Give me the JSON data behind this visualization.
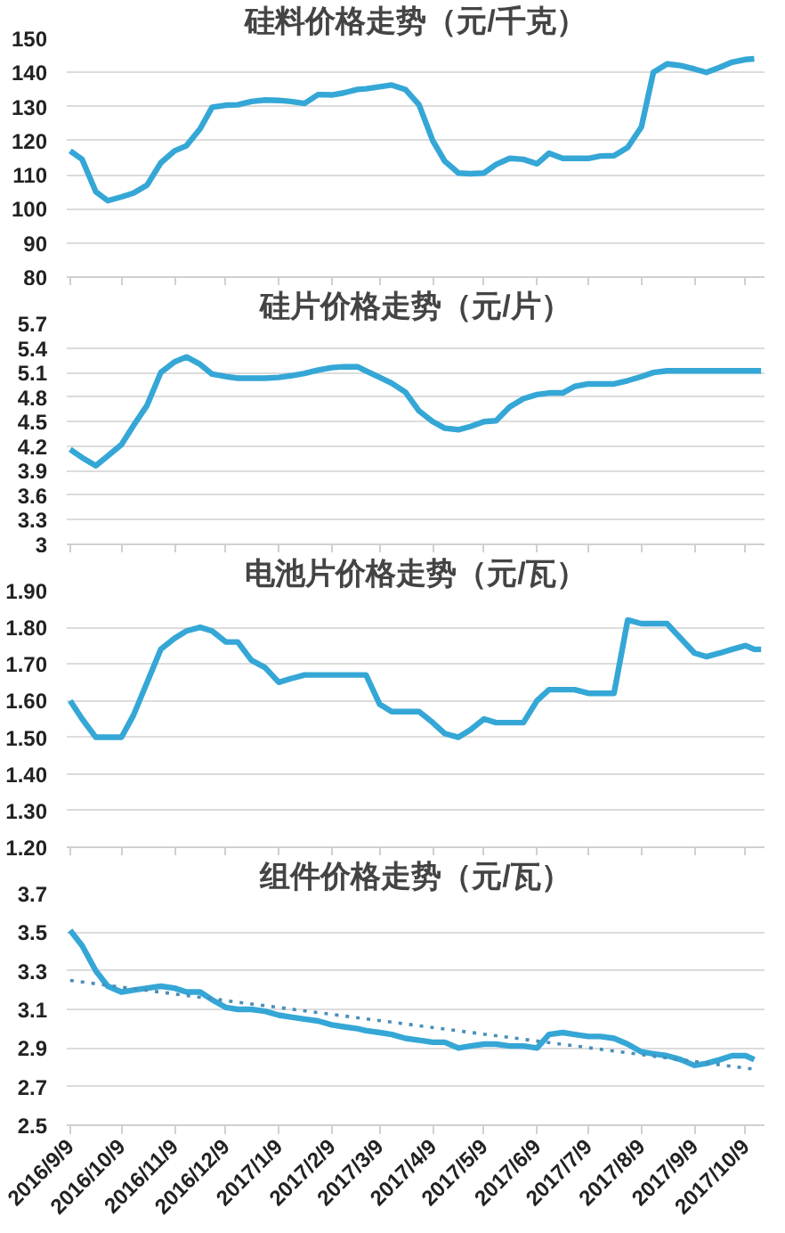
{
  "chart_data": [
    {
      "type": "line",
      "title": "硅料价格走势（元/千克）",
      "xlim": [
        "2016-09-07",
        "2017-10-20"
      ],
      "ylim": [
        80,
        150
      ],
      "yticks": [
        80,
        90,
        100,
        110,
        120,
        130,
        140,
        150
      ],
      "grid": "y",
      "tick_labels": "y",
      "line_style": "solid",
      "marker": "none",
      "xticks": [
        {
          "value": "2016-09-09",
          "label": null
        },
        {
          "value": "2016-10-09",
          "label": null
        },
        {
          "value": "2016-11-09",
          "label": null
        },
        {
          "value": "2016-12-09",
          "label": null
        },
        {
          "value": "2017-01-09",
          "label": null
        },
        {
          "value": "2017-02-09",
          "label": null
        },
        {
          "value": "2017-03-09",
          "label": null
        },
        {
          "value": "2017-04-09",
          "label": null
        },
        {
          "value": "2017-05-09",
          "label": null
        },
        {
          "value": "2017-06-09",
          "label": null
        },
        {
          "value": "2017-07-09",
          "label": null
        },
        {
          "value": "2017-08-09",
          "label": null
        },
        {
          "value": "2017-09-09",
          "label": null
        },
        {
          "value": "2017-10-09",
          "label": null
        }
      ],
      "series": [
        {
          "color": "#35a7d6",
          "x": [
            "2016-09-09",
            "2016-09-16",
            "2016-09-24",
            "2016-10-01",
            "2016-10-09",
            "2016-10-16",
            "2016-10-24",
            "2016-11-01",
            "2016-11-09",
            "2016-11-16",
            "2016-11-24",
            "2016-12-01",
            "2016-12-09",
            "2016-12-16",
            "2016-12-24",
            "2017-01-01",
            "2017-01-09",
            "2017-01-16",
            "2017-01-24",
            "2017-02-01",
            "2017-02-09",
            "2017-02-16",
            "2017-02-24",
            "2017-03-01",
            "2017-03-09",
            "2017-03-16",
            "2017-03-24",
            "2017-04-01",
            "2017-04-09",
            "2017-04-16",
            "2017-04-24",
            "2017-05-01",
            "2017-05-09",
            "2017-05-16",
            "2017-05-24",
            "2017-06-01",
            "2017-06-09",
            "2017-06-16",
            "2017-06-24",
            "2017-07-01",
            "2017-07-09",
            "2017-07-16",
            "2017-07-24",
            "2017-08-01",
            "2017-08-09",
            "2017-08-16",
            "2017-08-24",
            "2017-09-01",
            "2017-09-09",
            "2017-09-16",
            "2017-09-24",
            "2017-10-01",
            "2017-10-09",
            "2017-10-14"
          ],
          "values": [
            117,
            114.5,
            105,
            102.4,
            103.5,
            104.6,
            107,
            113.5,
            117,
            118.5,
            123.5,
            129.8,
            130.4,
            130.5,
            131.5,
            131.9,
            131.8,
            131.5,
            130.9,
            133.5,
            133.4,
            134,
            135,
            135.2,
            135.8,
            136.3,
            135,
            130.5,
            120,
            114,
            110.5,
            110.3,
            110.5,
            113,
            114.8,
            114.5,
            113.2,
            116.3,
            114.8,
            114.8,
            114.8,
            115.5,
            115.6,
            118,
            124,
            140,
            142.5,
            142,
            141,
            140,
            141.5,
            143,
            143.8,
            144
          ]
        }
      ]
    },
    {
      "type": "line",
      "title": "硅片价格走势（元/片）",
      "xlim": [
        "2016-09-07",
        "2017-10-20"
      ],
      "ylim": [
        3,
        5.7
      ],
      "yticks": [
        3,
        3.3,
        3.6,
        3.9,
        4.2,
        4.5,
        4.8,
        5.1,
        5.4,
        5.7
      ],
      "grid": "y",
      "tick_labels": "y",
      "line_style": "solid",
      "marker": "none",
      "xticks": [
        {
          "value": "2016-09-09",
          "label": null
        },
        {
          "value": "2016-10-09",
          "label": null
        },
        {
          "value": "2016-11-09",
          "label": null
        },
        {
          "value": "2016-12-09",
          "label": null
        },
        {
          "value": "2017-01-09",
          "label": null
        },
        {
          "value": "2017-02-09",
          "label": null
        },
        {
          "value": "2017-03-09",
          "label": null
        },
        {
          "value": "2017-04-09",
          "label": null
        },
        {
          "value": "2017-05-09",
          "label": null
        },
        {
          "value": "2017-06-09",
          "label": null
        },
        {
          "value": "2017-07-09",
          "label": null
        },
        {
          "value": "2017-08-09",
          "label": null
        },
        {
          "value": "2017-09-09",
          "label": null
        },
        {
          "value": "2017-10-09",
          "label": null
        }
      ],
      "series": [
        {
          "color": "#35a7d6",
          "x": [
            "2016-09-09",
            "2016-09-16",
            "2016-09-24",
            "2016-10-01",
            "2016-10-09",
            "2016-10-16",
            "2016-10-24",
            "2016-11-01",
            "2016-11-09",
            "2016-11-16",
            "2016-11-24",
            "2016-12-01",
            "2016-12-09",
            "2016-12-16",
            "2016-12-24",
            "2017-01-01",
            "2017-01-09",
            "2017-01-16",
            "2017-01-24",
            "2017-02-01",
            "2017-02-09",
            "2017-02-16",
            "2017-02-24",
            "2017-03-01",
            "2017-03-09",
            "2017-03-16",
            "2017-03-24",
            "2017-04-01",
            "2017-04-09",
            "2017-04-16",
            "2017-04-24",
            "2017-05-01",
            "2017-05-09",
            "2017-05-16",
            "2017-05-24",
            "2017-06-01",
            "2017-06-09",
            "2017-06-16",
            "2017-06-24",
            "2017-07-01",
            "2017-07-09",
            "2017-07-16",
            "2017-07-24",
            "2017-08-01",
            "2017-08-09",
            "2017-08-16",
            "2017-08-24",
            "2017-09-01",
            "2017-09-09",
            "2017-09-16",
            "2017-09-24",
            "2017-10-01",
            "2017-10-09",
            "2017-10-14",
            "2017-10-18"
          ],
          "values": [
            4.16,
            4.06,
            3.96,
            4.08,
            4.22,
            4.45,
            4.7,
            5.1,
            5.23,
            5.29,
            5.2,
            5.08,
            5.05,
            5.03,
            5.03,
            5.03,
            5.04,
            5.06,
            5.09,
            5.13,
            5.16,
            5.17,
            5.17,
            5.12,
            5.04,
            4.97,
            4.86,
            4.63,
            4.5,
            4.42,
            4.4,
            4.44,
            4.5,
            4.51,
            4.68,
            4.78,
            4.83,
            4.85,
            4.85,
            4.93,
            4.96,
            4.96,
            4.96,
            5.0,
            5.05,
            5.1,
            5.12,
            5.12,
            5.12,
            5.12,
            5.12,
            5.12,
            5.12,
            5.12,
            5.12
          ]
        }
      ]
    },
    {
      "type": "line",
      "title": "电池片价格走势（元/瓦）",
      "xlim": [
        "2016-09-07",
        "2017-10-20"
      ],
      "ylim": [
        1.2,
        1.9
      ],
      "grid": "y",
      "tick_labels": "y",
      "line_style": "solid",
      "marker": "none",
      "yticks": [
        {
          "value": 1.2,
          "label": "1.20"
        },
        {
          "value": 1.3,
          "label": "1.30"
        },
        {
          "value": 1.4,
          "label": "1.40"
        },
        {
          "value": 1.5,
          "label": "1.50"
        },
        {
          "value": 1.6,
          "label": "1.60"
        },
        {
          "value": 1.7,
          "label": "1.70"
        },
        {
          "value": 1.8,
          "label": "1.80"
        },
        {
          "value": 1.9,
          "label": "1.90"
        }
      ],
      "xticks": [
        {
          "value": "2016-09-09",
          "label": null
        },
        {
          "value": "2016-10-09",
          "label": null
        },
        {
          "value": "2016-11-09",
          "label": null
        },
        {
          "value": "2016-12-09",
          "label": null
        },
        {
          "value": "2017-01-09",
          "label": null
        },
        {
          "value": "2017-02-09",
          "label": null
        },
        {
          "value": "2017-03-09",
          "label": null
        },
        {
          "value": "2017-04-09",
          "label": null
        },
        {
          "value": "2017-05-09",
          "label": null
        },
        {
          "value": "2017-06-09",
          "label": null
        },
        {
          "value": "2017-07-09",
          "label": null
        },
        {
          "value": "2017-08-09",
          "label": null
        },
        {
          "value": "2017-09-09",
          "label": null
        },
        {
          "value": "2017-10-09",
          "label": null
        }
      ],
      "series": [
        {
          "color": "#35a7d6",
          "x": [
            "2016-09-09",
            "2016-09-16",
            "2016-09-24",
            "2016-10-01",
            "2016-10-09",
            "2016-10-16",
            "2016-10-24",
            "2016-11-01",
            "2016-11-09",
            "2016-11-16",
            "2016-11-24",
            "2016-12-01",
            "2016-12-09",
            "2016-12-16",
            "2016-12-24",
            "2017-01-01",
            "2017-01-09",
            "2017-01-16",
            "2017-01-24",
            "2017-02-01",
            "2017-02-09",
            "2017-02-16",
            "2017-02-24",
            "2017-03-01",
            "2017-03-09",
            "2017-03-16",
            "2017-03-24",
            "2017-04-01",
            "2017-04-09",
            "2017-04-16",
            "2017-04-24",
            "2017-05-01",
            "2017-05-09",
            "2017-05-16",
            "2017-05-24",
            "2017-06-01",
            "2017-06-09",
            "2017-06-16",
            "2017-06-24",
            "2017-07-01",
            "2017-07-09",
            "2017-07-16",
            "2017-07-24",
            "2017-08-01",
            "2017-08-09",
            "2017-08-16",
            "2017-08-24",
            "2017-09-01",
            "2017-09-09",
            "2017-09-16",
            "2017-09-24",
            "2017-10-01",
            "2017-10-09",
            "2017-10-14",
            "2017-10-18"
          ],
          "values": [
            1.6,
            1.55,
            1.5,
            1.5,
            1.5,
            1.56,
            1.65,
            1.74,
            1.77,
            1.79,
            1.8,
            1.79,
            1.76,
            1.76,
            1.71,
            1.69,
            1.65,
            1.66,
            1.67,
            1.67,
            1.67,
            1.67,
            1.67,
            1.67,
            1.59,
            1.57,
            1.57,
            1.57,
            1.54,
            1.51,
            1.5,
            1.52,
            1.55,
            1.54,
            1.54,
            1.54,
            1.6,
            1.63,
            1.63,
            1.63,
            1.62,
            1.62,
            1.62,
            1.82,
            1.81,
            1.81,
            1.81,
            1.77,
            1.73,
            1.72,
            1.73,
            1.74,
            1.75,
            1.74,
            1.74
          ]
        }
      ]
    },
    {
      "type": "line",
      "title": "组件价格走势（元/瓦）",
      "xlim": [
        "2016-09-07",
        "2017-10-20"
      ],
      "ylim": [
        2.5,
        3.7
      ],
      "yticks": [
        2.5,
        2.7,
        2.9,
        3.1,
        3.3,
        3.5,
        3.7
      ],
      "grid": "y",
      "line_style": "solid",
      "marker": "none",
      "xticks": [
        {
          "value": "2016-09-09",
          "label": "2016/9/9"
        },
        {
          "value": "2016-10-09",
          "label": "2016/10/9"
        },
        {
          "value": "2016-11-09",
          "label": "2016/11/9"
        },
        {
          "value": "2016-12-09",
          "label": "2016/12/9"
        },
        {
          "value": "2017-01-09",
          "label": "2017/1/9"
        },
        {
          "value": "2017-02-09",
          "label": "2017/2/9"
        },
        {
          "value": "2017-03-09",
          "label": "2017/3/9"
        },
        {
          "value": "2017-04-09",
          "label": "2017/4/9"
        },
        {
          "value": "2017-05-09",
          "label": "2017/5/9"
        },
        {
          "value": "2017-06-09",
          "label": "2017/6/9"
        },
        {
          "value": "2017-07-09",
          "label": "2017/7/9"
        },
        {
          "value": "2017-08-09",
          "label": "2017/8/9"
        },
        {
          "value": "2017-09-09",
          "label": "2017/9/9"
        },
        {
          "value": "2017-10-09",
          "label": "2017/10/9"
        }
      ],
      "series": [
        {
          "color": "#35a7d6",
          "x": [
            "2016-09-09",
            "2016-09-16",
            "2016-09-24",
            "2016-10-01",
            "2016-10-09",
            "2016-10-16",
            "2016-10-24",
            "2016-11-01",
            "2016-11-09",
            "2016-11-16",
            "2016-11-24",
            "2016-12-01",
            "2016-12-09",
            "2016-12-16",
            "2016-12-24",
            "2017-01-01",
            "2017-01-09",
            "2017-01-16",
            "2017-01-24",
            "2017-02-01",
            "2017-02-09",
            "2017-02-16",
            "2017-02-24",
            "2017-03-01",
            "2017-03-09",
            "2017-03-16",
            "2017-03-24",
            "2017-04-01",
            "2017-04-09",
            "2017-04-16",
            "2017-04-24",
            "2017-05-01",
            "2017-05-09",
            "2017-05-16",
            "2017-05-24",
            "2017-06-01",
            "2017-06-09",
            "2017-06-16",
            "2017-06-24",
            "2017-07-01",
            "2017-07-09",
            "2017-07-16",
            "2017-07-24",
            "2017-08-01",
            "2017-08-09",
            "2017-08-16",
            "2017-08-24",
            "2017-09-01",
            "2017-09-09",
            "2017-09-16",
            "2017-09-24",
            "2017-10-01",
            "2017-10-09",
            "2017-10-14"
          ],
          "values": [
            3.51,
            3.43,
            3.3,
            3.22,
            3.19,
            3.2,
            3.21,
            3.22,
            3.21,
            3.19,
            3.19,
            3.15,
            3.11,
            3.1,
            3.1,
            3.09,
            3.07,
            3.06,
            3.05,
            3.04,
            3.02,
            3.01,
            3.0,
            2.99,
            2.98,
            2.97,
            2.95,
            2.94,
            2.93,
            2.93,
            2.9,
            2.91,
            2.92,
            2.92,
            2.91,
            2.91,
            2.9,
            2.97,
            2.98,
            2.97,
            2.96,
            2.96,
            2.95,
            2.92,
            2.88,
            2.87,
            2.86,
            2.84,
            2.81,
            2.82,
            2.84,
            2.86,
            2.86,
            2.84
          ]
        },
        {
          "type": "line",
          "line_style": "dotted",
          "color": "#4a8fb8",
          "x": [
            "2016-09-09",
            "2017-10-14"
          ],
          "values": [
            3.25,
            2.79
          ]
        }
      ]
    }
  ]
}
